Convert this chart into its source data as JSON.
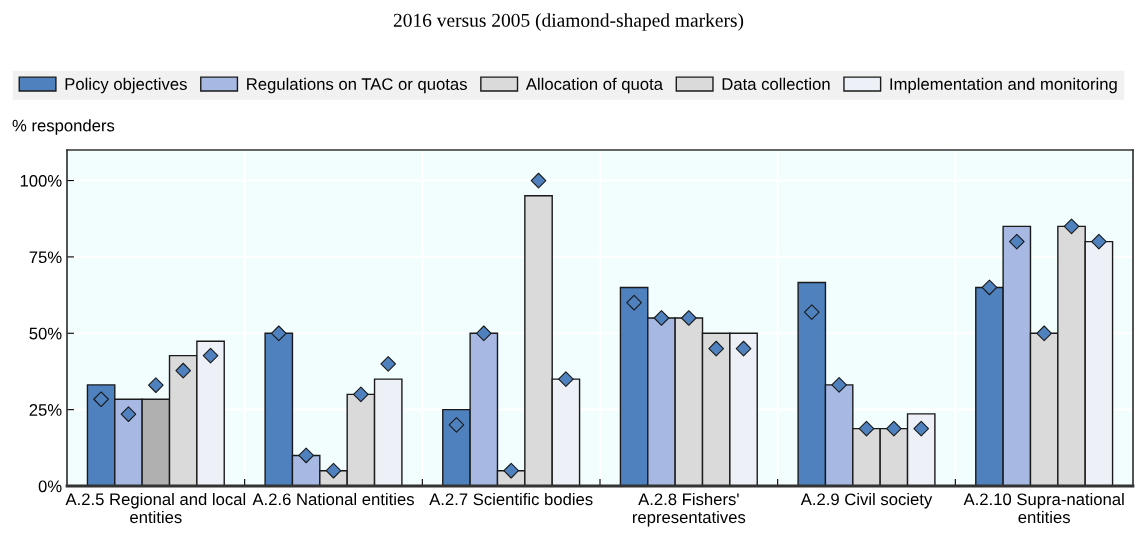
{
  "chart_data": {
    "type": "bar",
    "title": "2016 versus 2005 (diamond-shaped markers)",
    "ylabel": "% responders",
    "categories": [
      "A.2.5 Regional and local\nentities",
      "A.2.6 National entities",
      "A.2.7 Scientific bodies",
      "A.2.8 Fishers'\nrepresentatives",
      "A.2.9 Civil society",
      "A.2.10 Supra-national\nentities"
    ],
    "series": [
      {
        "name": "Policy objectives",
        "color": "#4e81bd",
        "values": [
          33.1,
          50,
          25,
          65,
          66.6,
          65
        ]
      },
      {
        "name": "Regulations on TAC or quotas",
        "color": "#a7b9e3",
        "values": [
          28.4,
          10,
          50,
          55,
          33.1,
          85
        ]
      },
      {
        "name": "Allocation of quota",
        "color": "#dadada",
        "colors": [
          "#b0b0b0",
          "#dadada",
          "#dadada",
          "#dadada",
          "#dadada",
          "#dadada"
        ],
        "values": [
          28.4,
          5,
          5,
          55,
          18.8,
          50
        ]
      },
      {
        "name": "Data collection",
        "color": "#dadada",
        "values": [
          42.7,
          30,
          95,
          50,
          18.8,
          85
        ]
      },
      {
        "name": "Implementation and monitoring",
        "color": "#eef0f8",
        "values": [
          47.4,
          35,
          35,
          50,
          23.6,
          80
        ]
      },
      {
        "type": "scatter",
        "color": "#4e81bd",
        "values": [
          28.4,
          50,
          20,
          60,
          56.9,
          65
        ]
      },
      {
        "type": "scatter",
        "color": "#4e81bd",
        "values": [
          23.5,
          10,
          50,
          55,
          33.1,
          80
        ]
      },
      {
        "type": "scatter",
        "color": "#4e81bd",
        "values": [
          33,
          5,
          5,
          55,
          18.8,
          50
        ]
      },
      {
        "type": "scatter",
        "color": "#4e81bd",
        "values": [
          37.8,
          30,
          100,
          45,
          18.8,
          85
        ]
      },
      {
        "type": "scatter",
        "color": "#4e81bd",
        "values": [
          42.7,
          40,
          35,
          45,
          18.8,
          80
        ]
      }
    ],
    "marker": "diamond",
    "ylim": [
      0,
      110
    ],
    "yticks": [
      {
        "value": 0,
        "label": "0%"
      },
      {
        "value": 25,
        "label": "25%"
      },
      {
        "value": 50,
        "label": "50%"
      },
      {
        "value": 75,
        "label": "75%"
      },
      {
        "value": 100,
        "label": "100%"
      }
    ],
    "grid": true,
    "legend": "top"
  }
}
